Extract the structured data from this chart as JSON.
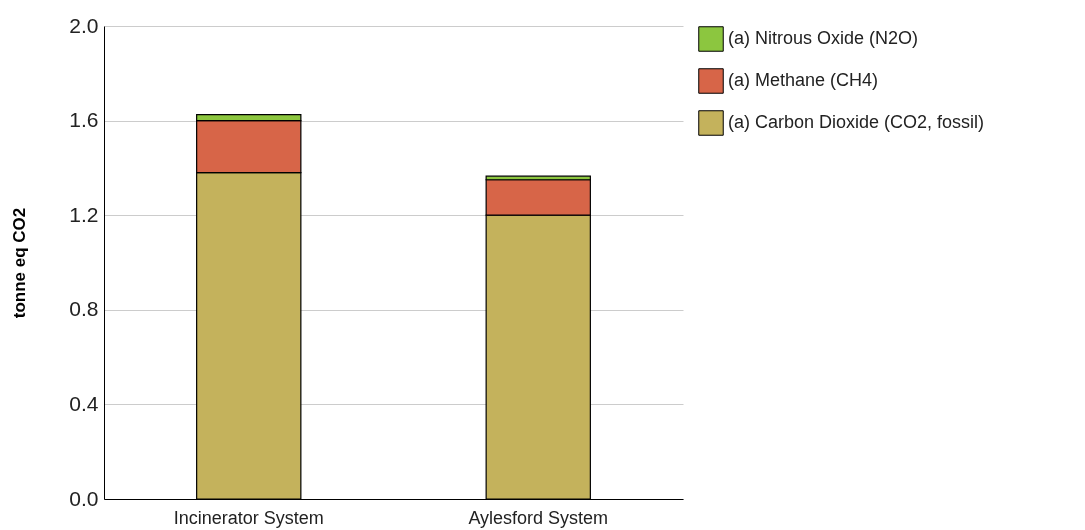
{
  "chart_data": {
    "type": "bar",
    "stacked": true,
    "ylabel": "tonne eq CO2",
    "categories": [
      "Incinerator System",
      "Aylesford System"
    ],
    "series": [
      {
        "name": "(a) Carbon Dioxide (CO2, fossil)",
        "color": "#c4b25c",
        "values": [
          1.38,
          1.2
        ]
      },
      {
        "name": "(a) Methane (CH4)",
        "color": "#d76548",
        "values": [
          0.22,
          0.15
        ]
      },
      {
        "name": "(a) Nitrous Oxide (N2O)",
        "color": "#8cc63f",
        "values": [
          0.025,
          0.015
        ]
      }
    ],
    "ylim": [
      0,
      2.0
    ],
    "yticks": [
      {
        "value": 0,
        "label": "0.0"
      },
      {
        "value": 0.4,
        "label": "0.4"
      },
      {
        "value": 0.8,
        "label": "0.8"
      },
      {
        "value": 1.2,
        "label": "1.2"
      },
      {
        "value": 1.6,
        "label": "1.6"
      },
      {
        "value": 2,
        "label": "2.0"
      }
    ],
    "grid": "y",
    "legend": "right"
  }
}
